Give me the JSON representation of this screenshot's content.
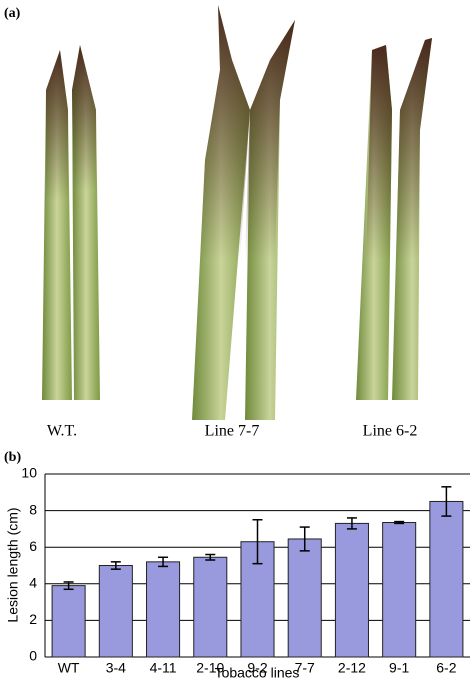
{
  "panel_a": {
    "label": "(a)",
    "captions": [
      "W.T.",
      "Line 7-7",
      "Line 6-2"
    ]
  },
  "chart_data": {
    "type": "bar",
    "panel_label": "(b)",
    "x_label": "Tobacco lines",
    "y_label": "Lesion length (cm)",
    "categories": [
      "WT",
      "3-4",
      "4-11",
      "2-10",
      "9-2",
      "7-7",
      "2-12",
      "9-1",
      "6-2"
    ],
    "values": [
      3.9,
      5.0,
      5.2,
      5.45,
      6.3,
      6.45,
      7.3,
      7.35,
      8.5
    ],
    "errors": [
      0.2,
      0.2,
      0.25,
      0.15,
      1.2,
      0.65,
      0.3,
      0.05,
      0.8
    ],
    "color": "#9999dd",
    "ylim": [
      0,
      10
    ],
    "yticks": [
      0,
      2,
      4,
      6,
      8,
      10
    ],
    "grid": true
  }
}
